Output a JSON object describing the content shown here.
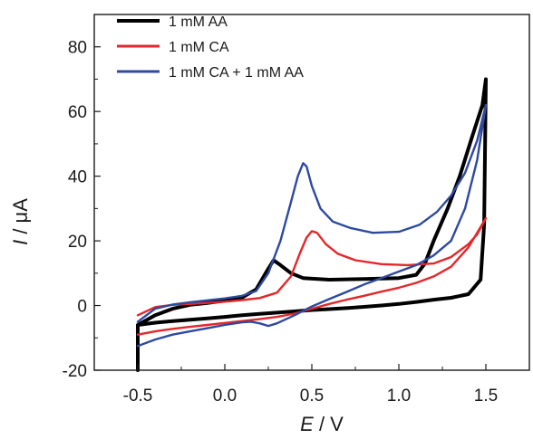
{
  "chart_data": {
    "type": "line",
    "xlabel": {
      "symbol": "E",
      "unit": " / V"
    },
    "ylabel": {
      "symbol": "I",
      "unit": " / μA"
    },
    "xlim": [
      -0.75,
      1.75
    ],
    "ylim": [
      -20,
      90
    ],
    "xticks": [
      -0.5,
      0.0,
      0.5,
      1.0,
      1.5
    ],
    "xtick_labels": [
      "-0.5",
      "0.0",
      "0.5",
      "1.0",
      "1.5"
    ],
    "yticks": [
      -20,
      0,
      20,
      40,
      60,
      80
    ],
    "ytick_labels": [
      "-20",
      "0",
      "20",
      "40",
      "60",
      "80"
    ],
    "legend_position": "top-left",
    "series": [
      {
        "name": "1 mM AA",
        "color": "#000000",
        "x": [
          -0.5,
          -0.4,
          -0.3,
          -0.2,
          -0.1,
          0.0,
          0.1,
          0.18,
          0.24,
          0.28,
          0.32,
          0.38,
          0.45,
          0.6,
          0.8,
          1.0,
          1.1,
          1.15,
          1.2,
          1.28,
          1.35,
          1.42,
          1.48,
          1.5,
          1.49,
          1.47,
          1.4,
          1.3,
          1.2,
          1.1,
          1.0,
          0.9,
          0.8,
          0.7,
          0.6,
          0.5,
          0.4,
          0.3,
          0.2,
          0.1,
          0.0,
          -0.1,
          -0.2,
          -0.3,
          -0.4,
          -0.5,
          -0.5
        ],
        "y": [
          -6,
          -3,
          -1,
          0.2,
          0.8,
          1.5,
          2.5,
          5,
          10.5,
          14,
          12.5,
          10,
          8.5,
          8,
          8.2,
          8.5,
          9.5,
          13,
          20,
          30,
          40,
          52,
          62,
          70,
          25,
          8,
          3.5,
          2.4,
          1.8,
          1.1,
          0.5,
          0,
          -0.4,
          -0.8,
          -1.1,
          -1.4,
          -1.8,
          -2.2,
          -2.6,
          -3,
          -3.5,
          -4,
          -4.4,
          -4.8,
          -5.3,
          -6,
          -20
        ]
      },
      {
        "name": "1 mM CA",
        "color": "#e4272b",
        "x": [
          -0.5,
          -0.4,
          -0.3,
          -0.2,
          -0.1,
          0.0,
          0.1,
          0.2,
          0.3,
          0.38,
          0.43,
          0.47,
          0.5,
          0.53,
          0.58,
          0.65,
          0.75,
          0.9,
          1.05,
          1.2,
          1.3,
          1.4,
          1.45,
          1.5,
          1.4,
          1.3,
          1.2,
          1.1,
          1.0,
          0.9,
          0.8,
          0.7,
          0.6,
          0.5,
          0.4,
          0.3,
          0.2,
          0.1,
          0.0,
          -0.1,
          -0.2,
          -0.3,
          -0.4,
          -0.5
        ],
        "y": [
          -3,
          -0.5,
          0.2,
          0.5,
          0.8,
          1.2,
          1.7,
          2.3,
          4,
          9,
          16,
          21,
          23,
          22.5,
          19,
          16,
          14,
          12.8,
          12.5,
          13,
          15,
          19,
          22,
          27,
          18,
          12,
          9,
          7,
          5.5,
          4.3,
          3,
          1.8,
          0.5,
          -1,
          -2.5,
          -3.5,
          -4.2,
          -4.8,
          -5.4,
          -6,
          -6.6,
          -7.2,
          -8,
          -9
        ]
      },
      {
        "name": "1 mM CA + 1 mM AA",
        "color": "#2e4aa0",
        "x": [
          -0.5,
          -0.4,
          -0.3,
          -0.2,
          -0.1,
          0.0,
          0.1,
          0.18,
          0.25,
          0.32,
          0.38,
          0.42,
          0.45,
          0.47,
          0.5,
          0.55,
          0.62,
          0.72,
          0.85,
          1.0,
          1.12,
          1.22,
          1.3,
          1.38,
          1.45,
          1.5,
          1.45,
          1.38,
          1.3,
          1.2,
          1.1,
          1.0,
          0.9,
          0.8,
          0.7,
          0.6,
          0.5,
          0.4,
          0.3,
          0.25,
          0.2,
          0.15,
          0.1,
          0.0,
          -0.1,
          -0.2,
          -0.3,
          -0.4,
          -0.5
        ],
        "y": [
          -5,
          -1,
          0.3,
          1,
          1.6,
          2.2,
          3,
          4.5,
          10,
          20,
          32,
          40,
          44,
          43,
          37,
          30,
          26,
          24,
          22.5,
          22.8,
          25,
          29,
          34,
          41,
          51,
          62,
          45,
          30,
          20,
          15.5,
          12.5,
          10.5,
          8.5,
          6.5,
          4.2,
          2,
          -0.3,
          -3,
          -5.5,
          -6.3,
          -5.5,
          -5,
          -5.2,
          -6,
          -7,
          -8,
          -9,
          -10.5,
          -12.5
        ]
      }
    ]
  }
}
